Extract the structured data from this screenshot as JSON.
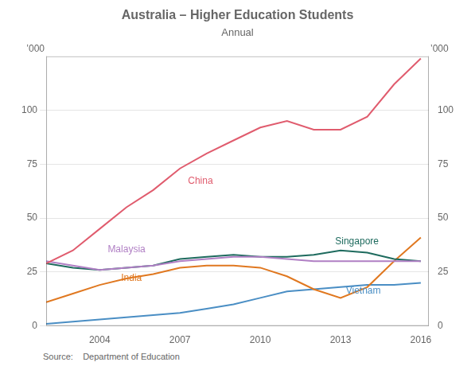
{
  "chart_data": {
    "type": "line",
    "title": "Australia – Higher Education Students",
    "subtitle": "Annual",
    "ylabel": "’000",
    "y2label": "’000",
    "source": "Source:    Department of Education",
    "x": [
      2002,
      2003,
      2004,
      2005,
      2006,
      2007,
      2008,
      2009,
      2010,
      2011,
      2012,
      2013,
      2014,
      2015,
      2016
    ],
    "xlim": [
      2002.0,
      2016.3
    ],
    "xticks": [
      2004,
      2007,
      2010,
      2013,
      2016
    ],
    "ylim": [
      0,
      125
    ],
    "yticks": [
      0,
      25,
      50,
      75,
      100
    ],
    "y2lim": [
      0,
      125
    ],
    "y2ticks": [
      0,
      25,
      50,
      75,
      100
    ],
    "grid": true,
    "series": [
      {
        "name": "China",
        "color": "#e05c6e",
        "values": [
          29,
          35,
          45,
          55,
          63,
          73,
          80,
          86,
          92,
          95,
          91,
          91,
          97,
          112,
          124
        ]
      },
      {
        "name": "Malaysia",
        "color": "#b07fc4",
        "values": [
          30,
          28,
          26,
          27,
          28,
          30,
          31,
          32,
          32,
          31,
          30,
          30,
          30,
          30,
          30
        ]
      },
      {
        "name": "Singapore",
        "color": "#1e6b5e",
        "values": [
          29,
          27,
          26,
          27,
          28,
          31,
          32,
          33,
          32,
          32,
          33,
          35,
          34,
          31,
          30
        ]
      },
      {
        "name": "India",
        "color": "#e07820",
        "values": [
          11,
          15,
          19,
          22,
          24,
          27,
          28,
          28,
          27,
          23,
          17,
          13,
          18,
          30,
          41
        ]
      },
      {
        "name": "Vietnam",
        "color": "#4a8ec4",
        "values": [
          1,
          2,
          3,
          4,
          5,
          6,
          8,
          10,
          13,
          16,
          17,
          18,
          19,
          19,
          20
        ]
      }
    ],
    "annotations": [
      {
        "text": "China",
        "x": 2007.3,
        "y": 65,
        "color": "#e05c6e"
      },
      {
        "text": "Malaysia",
        "x": 2004.3,
        "y": 33,
        "color": "#b07fc4"
      },
      {
        "text": "Singapore",
        "x": 2012.8,
        "y": 37,
        "color": "#1e6b5e"
      },
      {
        "text": "India",
        "x": 2004.8,
        "y": 20,
        "color": "#e07820"
      },
      {
        "text": "Vietnam",
        "x": 2013.2,
        "y": 14,
        "color": "#4a8ec4"
      }
    ]
  }
}
